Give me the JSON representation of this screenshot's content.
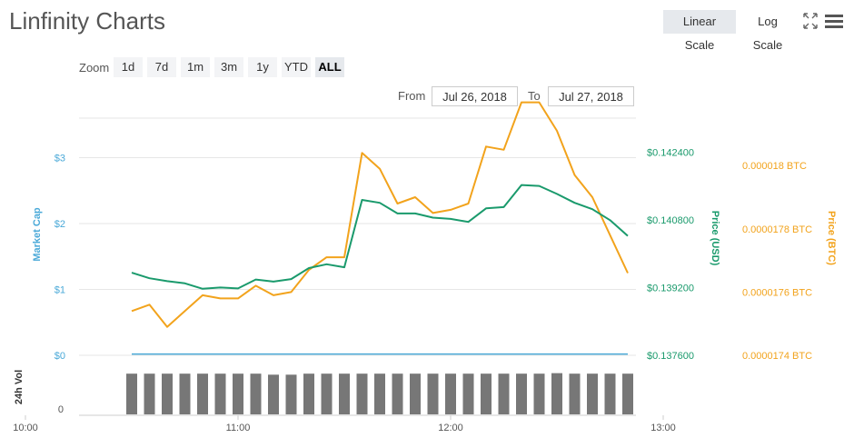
{
  "header": {
    "title": "Linfinity Charts",
    "linear_scale_label": "Linear Scale",
    "log_scale_label": "Log Scale"
  },
  "icons": {
    "fullscreen": "fullscreen-icon",
    "menu": "hamburger-menu-icon"
  },
  "range_selector": {
    "zoom_label": "Zoom",
    "buttons": [
      "1d",
      "7d",
      "1m",
      "3m",
      "1y",
      "YTD",
      "ALL"
    ],
    "active": "ALL",
    "from_label": "From",
    "from_value": "Jul 26, 2018",
    "to_label": "To",
    "to_value": "Jul 27, 2018"
  },
  "colors": {
    "usd": "#1a9a6c",
    "btc": "#f2a31c",
    "market_cap": "#4aa9d8",
    "volume": "#777777"
  },
  "chart_data": {
    "type": "line",
    "x_unit": "time of day",
    "x": [
      "10:30",
      "10:35",
      "10:40",
      "10:45",
      "10:50",
      "10:55",
      "11:00",
      "11:05",
      "11:10",
      "11:15",
      "11:20",
      "11:25",
      "11:30",
      "11:35",
      "11:40",
      "11:45",
      "11:50",
      "11:55",
      "12:00",
      "12:05",
      "12:10",
      "12:15",
      "12:20",
      "12:25",
      "12:30",
      "12:35",
      "12:40",
      "12:45",
      "12:50"
    ],
    "x_ticks": [
      "10:00",
      "11:00",
      "12:00",
      "13:00"
    ],
    "axes": {
      "market_cap": {
        "label": "Market Cap",
        "ticks": [
          "$0",
          "$1",
          "$2",
          "$3"
        ],
        "range": [
          0,
          3.6
        ]
      },
      "price_usd": {
        "label": "Price (USD)",
        "ticks": [
          "$0.137600",
          "$0.139200",
          "$0.140800",
          "$0.142400"
        ],
        "range": [
          0.1376,
          0.1432
        ]
      },
      "price_btc": {
        "label": "Price (BTC)",
        "ticks": [
          "0.0000174 BTC",
          "0.0000176 BTC",
          "0.0000178 BTC",
          "0.000018 BTC"
        ],
        "range": [
          1.74e-05,
          1.815e-05
        ]
      },
      "volume": {
        "label": "24h Vol",
        "ticks": [
          "0"
        ]
      }
    },
    "series": [
      {
        "name": "Price (USD)",
        "axis": "price_usd",
        "values": [
          0.13955,
          0.13942,
          0.13935,
          0.1393,
          0.13917,
          0.1392,
          0.13918,
          0.13939,
          0.13934,
          0.1394,
          0.13966,
          0.13975,
          0.13968,
          0.14127,
          0.1412,
          0.14095,
          0.14095,
          0.14085,
          0.14082,
          0.14075,
          0.14107,
          0.1411,
          0.14162,
          0.1416,
          0.14141,
          0.1412,
          0.14105,
          0.14079,
          0.14042
        ]
      },
      {
        "name": "Price (BTC)",
        "axis": "price_btc",
        "values": [
          1.754e-05,
          1.756e-05,
          1.749e-05,
          1.754e-05,
          1.759e-05,
          1.758e-05,
          1.758e-05,
          1.762e-05,
          1.759e-05,
          1.76e-05,
          1.767e-05,
          1.771e-05,
          1.771e-05,
          1.804e-05,
          1.799e-05,
          1.788e-05,
          1.79e-05,
          1.785e-05,
          1.786e-05,
          1.788e-05,
          1.806e-05,
          1.805e-05,
          1.82e-05,
          1.82e-05,
          1.811e-05,
          1.797e-05,
          1.79e-05,
          1.778e-05,
          1.766e-05
        ]
      },
      {
        "name": "Market Cap",
        "axis": "market_cap",
        "values": [
          0.02,
          0.02,
          0.02,
          0.02,
          0.02,
          0.02,
          0.02,
          0.02,
          0.02,
          0.02,
          0.02,
          0.02,
          0.02,
          0.02,
          0.02,
          0.02,
          0.02,
          0.02,
          0.02,
          0.02,
          0.02,
          0.02,
          0.02,
          0.02,
          0.02,
          0.02,
          0.02,
          0.02,
          0.02
        ]
      },
      {
        "name": "24h Vol",
        "axis": "volume",
        "values": [
          0.8,
          0.8,
          0.8,
          0.8,
          0.8,
          0.8,
          0.8,
          0.8,
          0.78,
          0.78,
          0.8,
          0.8,
          0.8,
          0.8,
          0.8,
          0.8,
          0.8,
          0.8,
          0.8,
          0.8,
          0.8,
          0.8,
          0.8,
          0.8,
          0.81,
          0.8,
          0.8,
          0.8,
          0.8
        ]
      }
    ]
  }
}
